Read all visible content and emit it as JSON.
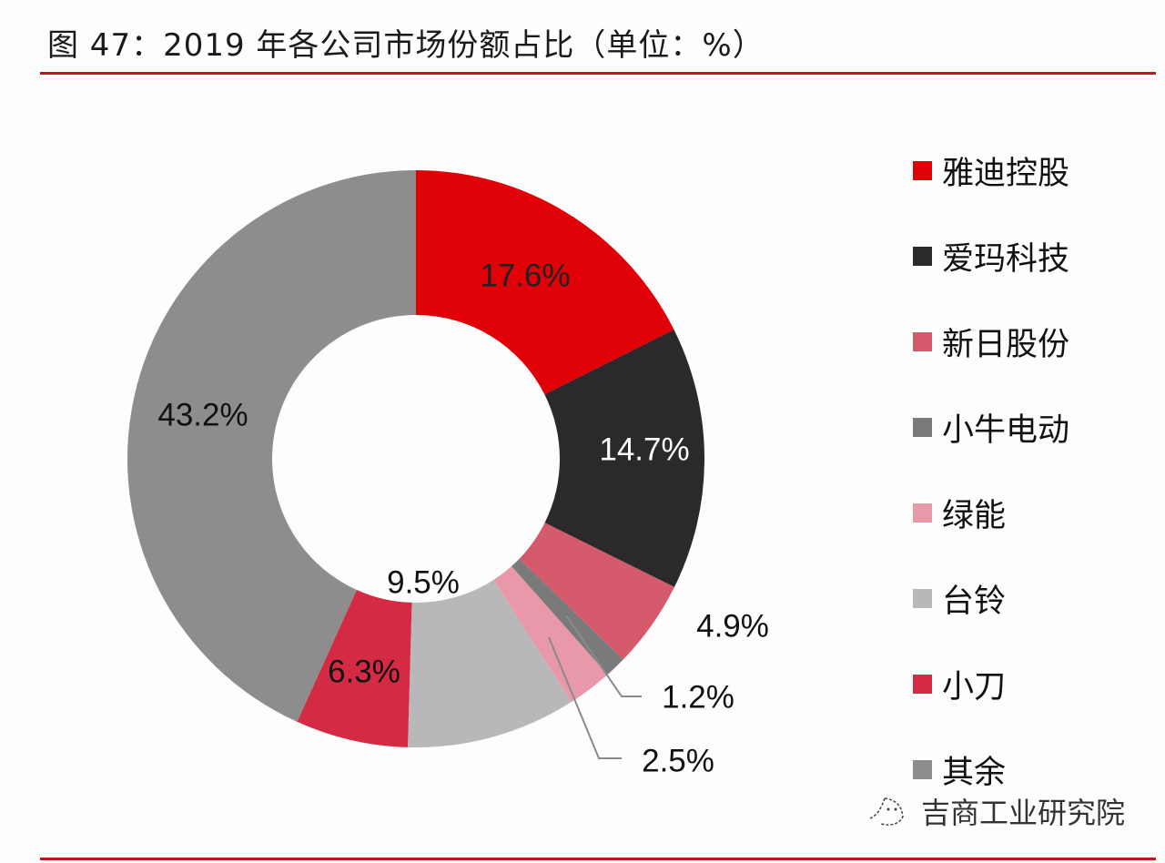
{
  "title": "图 47：2019 年各公司市场份额占比（单位：%）",
  "watermark": "吉商工业研究院",
  "chart_data": {
    "type": "pie",
    "donut": true,
    "start": "top, clockwise",
    "legend_position": "right",
    "categories": [
      "雅迪控股",
      "爱玛科技",
      "新日股份",
      "小牛电动",
      "绿能",
      "台铃",
      "小刀",
      "其余"
    ],
    "values": [
      17.6,
      14.7,
      4.9,
      1.2,
      2.5,
      9.5,
      6.3,
      43.2
    ],
    "labels": [
      "17.6%",
      "14.7%",
      "4.9%",
      "1.2%",
      "2.5%",
      "9.5%",
      "6.3%",
      "43.2%"
    ],
    "colors": [
      "#e00008",
      "#2b2929",
      "#d45a6c",
      "#7a7a7a",
      "#e898a8",
      "#b8b8ba",
      "#d42a44",
      "#8e8d8e"
    ],
    "label_colors": [
      "#222222",
      "#ffffff",
      "#111111",
      "#111111",
      "#111111",
      "#111111",
      "#111111",
      "#111111"
    ]
  }
}
